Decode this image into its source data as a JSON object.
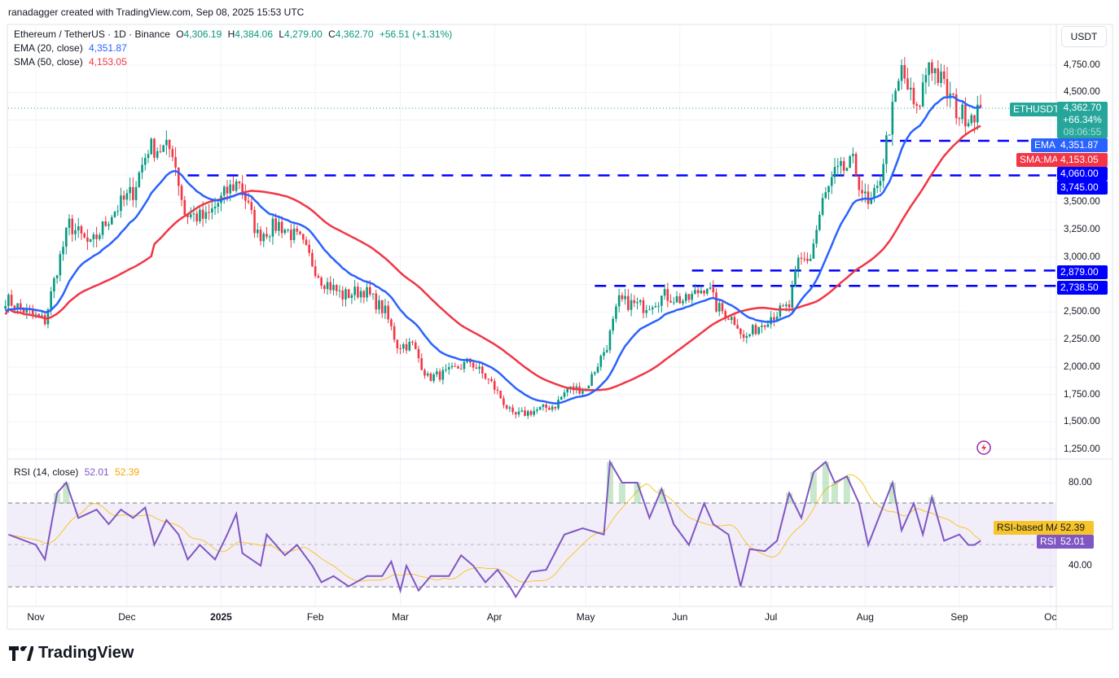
{
  "attribution": "ranadagger created with TradingView.com, Sep 08, 2025 15:53 UTC",
  "symbol": {
    "name": "Ethereum / TetherUS · 1D · Binance",
    "open": "4,306.19",
    "high": "4,384.06",
    "low": "4,279.00",
    "close": "4,362.70",
    "change": "+56.51 (+1.31%)"
  },
  "indicators": {
    "ema": {
      "label": "EMA (20, close)",
      "value": "4,351.87",
      "tag": "EMA",
      "color": "#2962ff"
    },
    "sma": {
      "label": "SMA (50, close)",
      "value": "4,153.05",
      "tag": "SMA:MA",
      "color": "#f23645"
    },
    "rsi": {
      "label": "RSI (14, close)",
      "value": "52.01",
      "ma_value": "52.39",
      "tag": "RSI",
      "ma_tag": "RSI-based MA",
      "color": "#7e57c2",
      "ma_color": "#f7c52b"
    }
  },
  "price_scale": {
    "currency": "USDT",
    "ticks": [
      "4,750.00",
      "4,500.00",
      "3,500.00",
      "3,250.00",
      "3,000.00",
      "2,500.00",
      "2,250.00",
      "2,000.00",
      "1,750.00",
      "1,500.00",
      "1,250.00"
    ]
  },
  "last_price": {
    "ticker": "ETHUSDT",
    "price": "4,362.70",
    "pct": "+66.34%",
    "countdown": "08:06:55",
    "color": "#26a69a"
  },
  "levels": [
    {
      "value": 4060,
      "label": "4,060.00",
      "from": "2025-08-06"
    },
    {
      "value": 3745,
      "label": "3,745.00",
      "from": "2024-12-21"
    },
    {
      "value": 2879,
      "label": "2,879.00",
      "from": "2025-06-05"
    },
    {
      "value": 2738.5,
      "label": "2,738.50",
      "from": "2025-05-04"
    }
  ],
  "rsi_scale": {
    "ticks": [
      "80.00",
      "40.00"
    ],
    "upper": 70,
    "lower": 30
  },
  "time_axis": [
    {
      "label": "Nov",
      "date": "2024-11-01"
    },
    {
      "label": "Dec",
      "date": "2024-12-01"
    },
    {
      "label": "2025",
      "date": "2025-01-01"
    },
    {
      "label": "Feb",
      "date": "2025-02-01"
    },
    {
      "label": "Mar",
      "date": "2025-03-01"
    },
    {
      "label": "Apr",
      "date": "2025-04-01"
    },
    {
      "label": "May",
      "date": "2025-05-01"
    },
    {
      "label": "Jun",
      "date": "2025-06-01"
    },
    {
      "label": "Jul",
      "date": "2025-07-01"
    },
    {
      "label": "Aug",
      "date": "2025-08-01"
    },
    {
      "label": "Sep",
      "date": "2025-09-01"
    },
    {
      "label": "Oc",
      "date": "2025-10-01"
    }
  ],
  "brand": "TradingView",
  "chart_data": {
    "type": "candlestick",
    "title": "Ethereum / TetherUS · 1D · Binance",
    "ylabel": "USDT",
    "ylim": [
      1150,
      4950
    ],
    "colors": {
      "up": "#089981",
      "down": "#f23645"
    },
    "close_path": [
      [
        "2024-10-22",
        2620
      ],
      [
        "2024-10-29",
        2500
      ],
      [
        "2024-11-04",
        2420
      ],
      [
        "2024-11-08",
        2900
      ],
      [
        "2024-11-12",
        3300
      ],
      [
        "2024-11-19",
        3100
      ],
      [
        "2024-11-26",
        3400
      ],
      [
        "2024-12-03",
        3600
      ],
      [
        "2024-12-08",
        4000
      ],
      [
        "2024-12-16",
        3980
      ],
      [
        "2024-12-20",
        3400
      ],
      [
        "2024-12-27",
        3350
      ],
      [
        "2025-01-03",
        3600
      ],
      [
        "2025-01-07",
        3700
      ],
      [
        "2025-01-13",
        3200
      ],
      [
        "2025-01-20",
        3300
      ],
      [
        "2025-01-27",
        3150
      ],
      [
        "2025-02-03",
        2800
      ],
      [
        "2025-02-10",
        2650
      ],
      [
        "2025-02-17",
        2700
      ],
      [
        "2025-02-24",
        2500
      ],
      [
        "2025-02-28",
        2200
      ],
      [
        "2025-03-05",
        2200
      ],
      [
        "2025-03-10",
        1900
      ],
      [
        "2025-03-17",
        1950
      ],
      [
        "2025-03-24",
        2050
      ],
      [
        "2025-03-31",
        1850
      ],
      [
        "2025-04-07",
        1550
      ],
      [
        "2025-04-14",
        1600
      ],
      [
        "2025-04-21",
        1650
      ],
      [
        "2025-04-25",
        1800
      ],
      [
        "2025-05-01",
        1800
      ],
      [
        "2025-05-08",
        2200
      ],
      [
        "2025-05-12",
        2600
      ],
      [
        "2025-05-20",
        2550
      ],
      [
        "2025-05-27",
        2650
      ],
      [
        "2025-06-03",
        2600
      ],
      [
        "2025-06-10",
        2750
      ],
      [
        "2025-06-13",
        2550
      ],
      [
        "2025-06-20",
        2400
      ],
      [
        "2025-06-22",
        2250
      ],
      [
        "2025-06-30",
        2450
      ],
      [
        "2025-07-07",
        2550
      ],
      [
        "2025-07-10",
        2950
      ],
      [
        "2025-07-14",
        3000
      ],
      [
        "2025-07-18",
        3500
      ],
      [
        "2025-07-22",
        3750
      ],
      [
        "2025-07-28",
        3850
      ],
      [
        "2025-08-02",
        3450
      ],
      [
        "2025-08-05",
        3600
      ],
      [
        "2025-08-09",
        4200
      ],
      [
        "2025-08-13",
        4700
      ],
      [
        "2025-08-18",
        4300
      ],
      [
        "2025-08-22",
        4800
      ],
      [
        "2025-08-24",
        4700
      ],
      [
        "2025-08-28",
        4500
      ],
      [
        "2025-09-01",
        4300
      ],
      [
        "2025-09-04",
        4300
      ],
      [
        "2025-09-08",
        4362.7
      ]
    ],
    "rsi": [
      [
        "2024-10-23",
        55
      ],
      [
        "2024-11-01",
        50
      ],
      [
        "2024-11-04",
        43
      ],
      [
        "2024-11-08",
        75
      ],
      [
        "2024-11-11",
        80
      ],
      [
        "2024-11-15",
        63
      ],
      [
        "2024-11-21",
        67
      ],
      [
        "2024-11-25",
        60
      ],
      [
        "2024-11-29",
        67
      ],
      [
        "2024-12-03",
        63
      ],
      [
        "2024-12-07",
        68
      ],
      [
        "2024-12-10",
        50
      ],
      [
        "2024-12-14",
        62
      ],
      [
        "2024-12-18",
        55
      ],
      [
        "2024-12-21",
        43
      ],
      [
        "2024-12-25",
        50
      ],
      [
        "2024-12-30",
        43
      ],
      [
        "2025-01-03",
        55
      ],
      [
        "2025-01-06",
        65
      ],
      [
        "2025-01-08",
        46
      ],
      [
        "2025-01-14",
        40
      ],
      [
        "2025-01-16",
        55
      ],
      [
        "2025-01-22",
        45
      ],
      [
        "2025-01-26",
        50
      ],
      [
        "2025-01-31",
        40
      ],
      [
        "2025-02-03",
        32
      ],
      [
        "2025-02-07",
        35
      ],
      [
        "2025-02-12",
        30
      ],
      [
        "2025-02-18",
        35
      ],
      [
        "2025-02-23",
        35
      ],
      [
        "2025-02-26",
        42
      ],
      [
        "2025-03-01",
        28
      ],
      [
        "2025-03-03",
        40
      ],
      [
        "2025-03-07",
        28
      ],
      [
        "2025-03-11",
        35
      ],
      [
        "2025-03-17",
        35
      ],
      [
        "2025-03-21",
        45
      ],
      [
        "2025-03-25",
        40
      ],
      [
        "2025-03-29",
        32
      ],
      [
        "2025-04-02",
        38
      ],
      [
        "2025-04-06",
        30
      ],
      [
        "2025-04-08",
        25
      ],
      [
        "2025-04-13",
        37
      ],
      [
        "2025-04-18",
        38
      ],
      [
        "2025-04-24",
        55
      ],
      [
        "2025-04-30",
        58
      ],
      [
        "2025-05-07",
        55
      ],
      [
        "2025-05-09",
        90
      ],
      [
        "2025-05-13",
        80
      ],
      [
        "2025-05-18",
        80
      ],
      [
        "2025-05-22",
        63
      ],
      [
        "2025-05-26",
        77
      ],
      [
        "2025-05-30",
        60
      ],
      [
        "2025-06-04",
        50
      ],
      [
        "2025-06-09",
        70
      ],
      [
        "2025-06-12",
        60
      ],
      [
        "2025-06-17",
        55
      ],
      [
        "2025-06-21",
        30
      ],
      [
        "2025-06-24",
        48
      ],
      [
        "2025-06-29",
        47
      ],
      [
        "2025-07-03",
        52
      ],
      [
        "2025-07-07",
        75
      ],
      [
        "2025-07-11",
        63
      ],
      [
        "2025-07-15",
        85
      ],
      [
        "2025-07-19",
        90
      ],
      [
        "2025-07-22",
        80
      ],
      [
        "2025-07-26",
        83
      ],
      [
        "2025-07-30",
        70
      ],
      [
        "2025-08-02",
        50
      ],
      [
        "2025-08-06",
        65
      ],
      [
        "2025-08-10",
        80
      ],
      [
        "2025-08-13",
        57
      ],
      [
        "2025-08-17",
        70
      ],
      [
        "2025-08-20",
        55
      ],
      [
        "2025-08-23",
        73
      ],
      [
        "2025-08-27",
        52
      ],
      [
        "2025-09-01",
        55
      ],
      [
        "2025-09-04",
        50
      ],
      [
        "2025-09-06",
        50
      ],
      [
        "2025-09-08",
        52.01
      ]
    ],
    "rsi_ylim": [
      22,
      91
    ]
  }
}
